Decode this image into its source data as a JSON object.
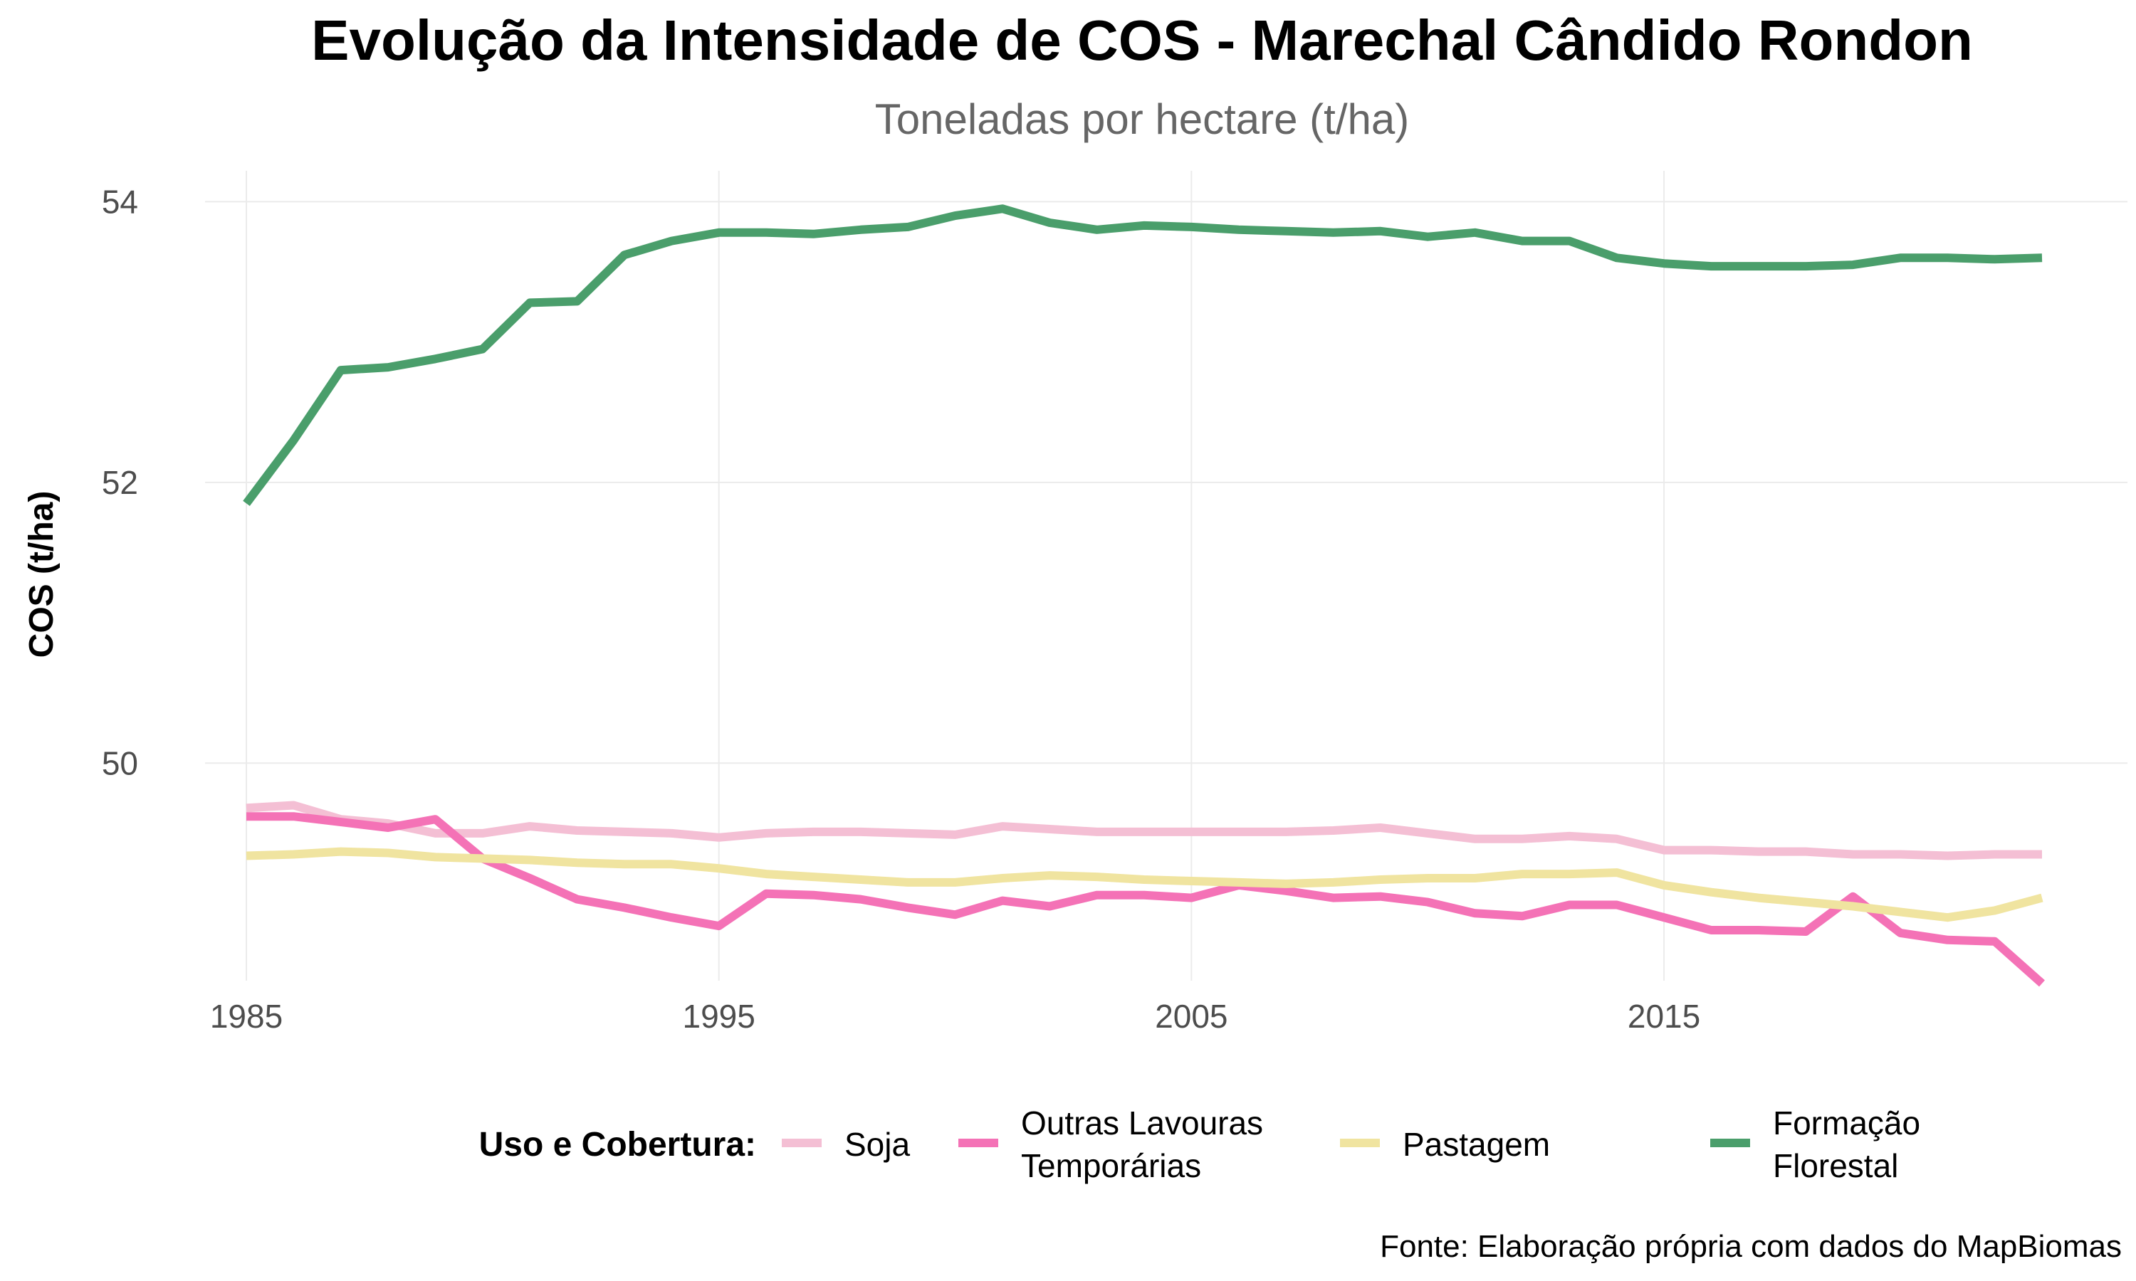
{
  "chart_data": {
    "type": "line",
    "title": "Evolução da Intensidade de COS - Marechal Cândido Rondon",
    "subtitle": "Toneladas por hectare (t/ha)",
    "xlabel": "",
    "ylabel": "COS (t/ha)",
    "caption": "Fonte: Elaboração própria com dados do MapBiomas",
    "xlim": [
      1985,
      2023
    ],
    "ylim": [
      48.45,
      54.22
    ],
    "x_ticks": [
      1985,
      1995,
      2005,
      2015
    ],
    "y_ticks": [
      50,
      52,
      54
    ],
    "grid": true,
    "legend": {
      "title": "Uso e Cobertura:",
      "position": "bottom"
    },
    "x": [
      1985,
      1986,
      1987,
      1988,
      1989,
      1990,
      1991,
      1992,
      1993,
      1994,
      1995,
      1996,
      1997,
      1998,
      1999,
      2000,
      2001,
      2002,
      2003,
      2004,
      2005,
      2006,
      2007,
      2008,
      2009,
      2010,
      2011,
      2012,
      2013,
      2014,
      2015,
      2016,
      2017,
      2018,
      2019,
      2020,
      2021,
      2022,
      2023
    ],
    "series": [
      {
        "name": "Soja",
        "legend_lines": [
          "Soja"
        ],
        "color": "#f4bfd4",
        "values": [
          49.68,
          49.7,
          49.6,
          49.57,
          49.5,
          49.5,
          49.55,
          49.52,
          49.51,
          49.5,
          49.47,
          49.5,
          49.51,
          49.51,
          49.5,
          49.49,
          49.55,
          49.53,
          49.51,
          49.51,
          49.51,
          49.51,
          49.51,
          49.52,
          49.54,
          49.5,
          49.46,
          49.46,
          49.48,
          49.46,
          49.38,
          49.38,
          49.37,
          49.37,
          49.35,
          49.35,
          49.34,
          49.35,
          49.35
        ]
      },
      {
        "name": "Outras Lavouras Temporárias",
        "legend_lines": [
          "Outras Lavouras",
          "Temporárias"
        ],
        "color": "#f472b6",
        "values": [
          49.62,
          49.62,
          49.58,
          49.54,
          49.6,
          49.32,
          49.18,
          49.03,
          48.97,
          48.9,
          48.84,
          49.07,
          49.06,
          49.03,
          48.97,
          48.92,
          49.02,
          48.98,
          49.06,
          49.06,
          49.04,
          49.13,
          49.09,
          49.04,
          49.05,
          49.01,
          48.93,
          48.91,
          48.99,
          48.99,
          48.9,
          48.81,
          48.81,
          48.8,
          49.05,
          48.79,
          48.74,
          48.73,
          48.43
        ]
      },
      {
        "name": "Pastagem",
        "legend_lines": [
          "Pastagem"
        ],
        "color": "#f0e4a0",
        "values": [
          49.34,
          49.35,
          49.37,
          49.36,
          49.33,
          49.32,
          49.31,
          49.29,
          49.28,
          49.28,
          49.25,
          49.21,
          49.19,
          49.17,
          49.15,
          49.15,
          49.18,
          49.2,
          49.19,
          49.17,
          49.16,
          49.15,
          49.14,
          49.15,
          49.17,
          49.18,
          49.18,
          49.21,
          49.21,
          49.22,
          49.13,
          49.08,
          49.04,
          49.01,
          48.98,
          48.94,
          48.9,
          48.95,
          49.04
        ]
      },
      {
        "name": "Formação Florestal",
        "legend_lines": [
          "Formação",
          "Florestal"
        ],
        "color": "#4a9e6b",
        "values": [
          51.85,
          52.3,
          52.8,
          52.82,
          52.88,
          52.95,
          53.28,
          53.29,
          53.62,
          53.72,
          53.78,
          53.78,
          53.77,
          53.8,
          53.82,
          53.9,
          53.95,
          53.85,
          53.8,
          53.83,
          53.82,
          53.8,
          53.79,
          53.78,
          53.79,
          53.75,
          53.78,
          53.72,
          53.72,
          53.6,
          53.56,
          53.54,
          53.54,
          53.54,
          53.55,
          53.6,
          53.6,
          53.59,
          53.6
        ]
      }
    ]
  }
}
